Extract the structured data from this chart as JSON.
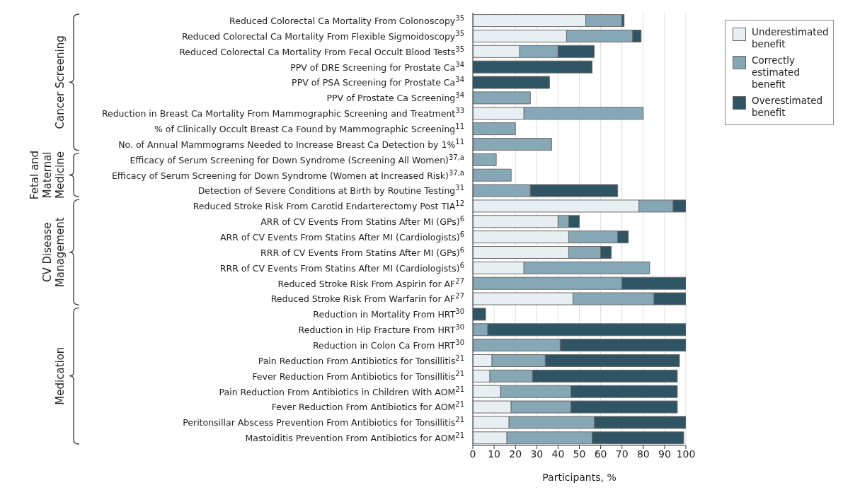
{
  "chart_data": {
    "type": "bar",
    "orientation": "horizontal",
    "stacked": true,
    "xlabel": "Participants, %",
    "categories": [
      "Reduced Colorectal Ca Mortality From Colonoscopy$^{35}$",
      "Reduced Colorectal Ca Mortality From Flexible Sigmoidoscopy$^{35}$",
      "Reduced Colorectal Ca Mortality From Fecal Occult Blood Tests$^{35}$",
      "PPV of DRE Screening for Prostate Ca$^{34}$",
      "PPV of PSA Screening for Prostate Ca$^{34}$",
      "PPV of Prostate Ca Screening$^{34}$",
      "Reduction in Breast Ca Mortality From Mammographic Screening and Treatment$^{33}$",
      "% of Clinically Occult Breast Ca Found by Mammographic Screening$^{11}$",
      "No. of Annual Mammograms Needed to Increase Breast Ca Detection by 1%$^{11}$",
      "Efficacy of Serum Screening for Down Syndrome (Screening All Women)$^{37,a}$",
      "Efficacy of Serum Screening for Down Syndrome (Women at Increased Risk)$^{37,a}$",
      "Detection of Severe Conditions at Birth by Routine Testing$^{31}$",
      "Reduced Stroke Risk From Carotid Endarterectomy Post TIA$^{12}$",
      "ARR of CV Events From Statins After MI (GPs)$^{6}$",
      "ARR of CV Events From Statins After MI (Cardiologists)$^{6}$",
      "RRR of CV Events From Statins After MI (GPs)$^{6}$",
      "RRR of CV Events From Statins After MI (Cardiologists)$^{6}$",
      "Reduced Stroke Risk From Aspirin for AF$^{27}$",
      "Reduced Stroke Risk From Warfarin for AF$^{27}$",
      "Reduction in Mortality From HRT$^{30}$",
      "Reduction in Hip Fracture From HRT$^{30}$",
      "Reduction in Colon Ca From HRT$^{30}$",
      "Pain Reduction From Antibiotics for Tonsillitis$^{21}$",
      "Fever Reduction From Antibiotics for Tonsillitis$^{21}$",
      "Pain Reduction From Antibiotics in Children With AOM$^{21}$",
      "Fever Reduction From Antibiotics for AOM$^{21}$",
      "Peritonsillar Abscess Prevention From Antibiotics for Tonsillitis$^{21}$",
      "Mastoiditis Prevention From Antibiotics for AOM$^{21}$"
    ],
    "series": [
      {
        "name": "Underestimated benefit",
        "color": "#e8eff2",
        "values": [
          53,
          44,
          22,
          0,
          0,
          0,
          24,
          0,
          0,
          0,
          0,
          0,
          78,
          40,
          45,
          45,
          24,
          0,
          47,
          0,
          0,
          0,
          9,
          8,
          13,
          18,
          17,
          16
        ]
      },
      {
        "name": "Correctly estimated benefit",
        "color": "#86a8b6",
        "values": [
          17,
          31,
          18,
          0,
          0,
          27,
          56,
          20,
          37,
          11,
          18,
          27,
          16,
          5,
          23,
          15,
          59,
          70,
          38,
          0,
          7,
          41,
          25,
          20,
          33,
          28,
          40,
          40
        ]
      },
      {
        "name": "Overestimated benefit",
        "color": "#2f5564",
        "values": [
          1,
          4,
          17,
          56,
          36,
          0,
          0,
          0,
          0,
          0,
          0,
          41,
          6,
          5,
          5,
          5,
          0,
          30,
          15,
          6,
          93,
          59,
          63,
          68,
          50,
          50,
          43,
          43
        ]
      }
    ],
    "xlim": [
      0,
      100
    ],
    "xticks": [
      0,
      10,
      20,
      30,
      40,
      50,
      60,
      70,
      80,
      90,
      100
    ],
    "grid": "x",
    "legend": "top right",
    "annotations": [
      "Cancer Screening",
      "Fetal and Maternal Medicine",
      "CV Disease Management",
      "Medication"
    ]
  }
}
